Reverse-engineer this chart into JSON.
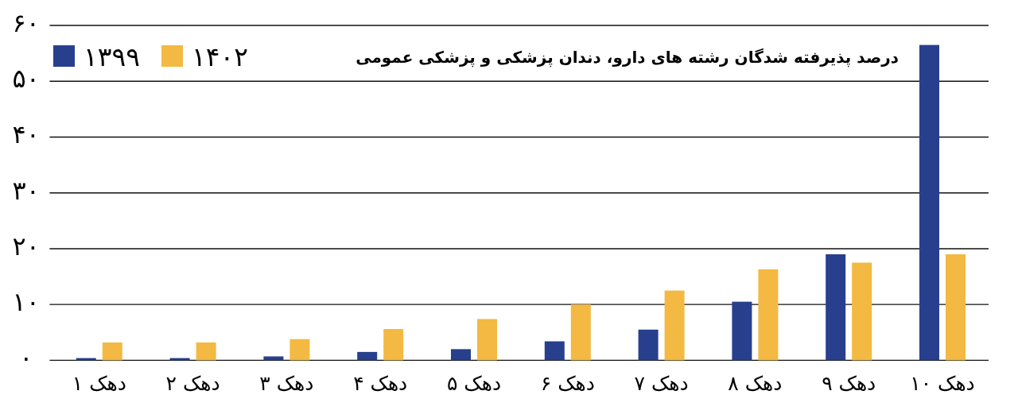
{
  "chart_data": {
    "type": "bar",
    "title": "درصد پذیرفته شدگان رشته های دارو، دندان پزشکی و پزشکی عمومی",
    "categories": [
      "دهک ۱",
      "دهک ۲",
      "دهک ۳",
      "دهک ۴",
      "دهک ۵",
      "دهک ۶",
      "دهک ۷",
      "دهک ۸",
      "دهک ۹",
      "دهک ۱۰"
    ],
    "series": [
      {
        "name": "۱۳۹۹",
        "color": "#283f8e",
        "values": [
          0.4,
          0.4,
          0.7,
          1.5,
          2.0,
          3.4,
          5.5,
          10.5,
          19.0,
          56.5
        ]
      },
      {
        "name": "۱۴۰۲",
        "color": "#f3b942",
        "values": [
          3.2,
          3.2,
          3.8,
          5.6,
          7.4,
          10.0,
          12.5,
          16.3,
          17.5,
          19.0
        ]
      }
    ],
    "ylim": [
      0,
      60
    ],
    "yticks": [
      {
        "value": 0,
        "label": "۰"
      },
      {
        "value": 10,
        "label": "۱۰"
      },
      {
        "value": 20,
        "label": "۲۰"
      },
      {
        "value": 30,
        "label": "۳۰"
      },
      {
        "value": 40,
        "label": "۴۰"
      },
      {
        "value": 50,
        "label": "۵۰"
      },
      {
        "value": 60,
        "label": "۶۰"
      }
    ],
    "grid": "y",
    "legend": "top left"
  }
}
